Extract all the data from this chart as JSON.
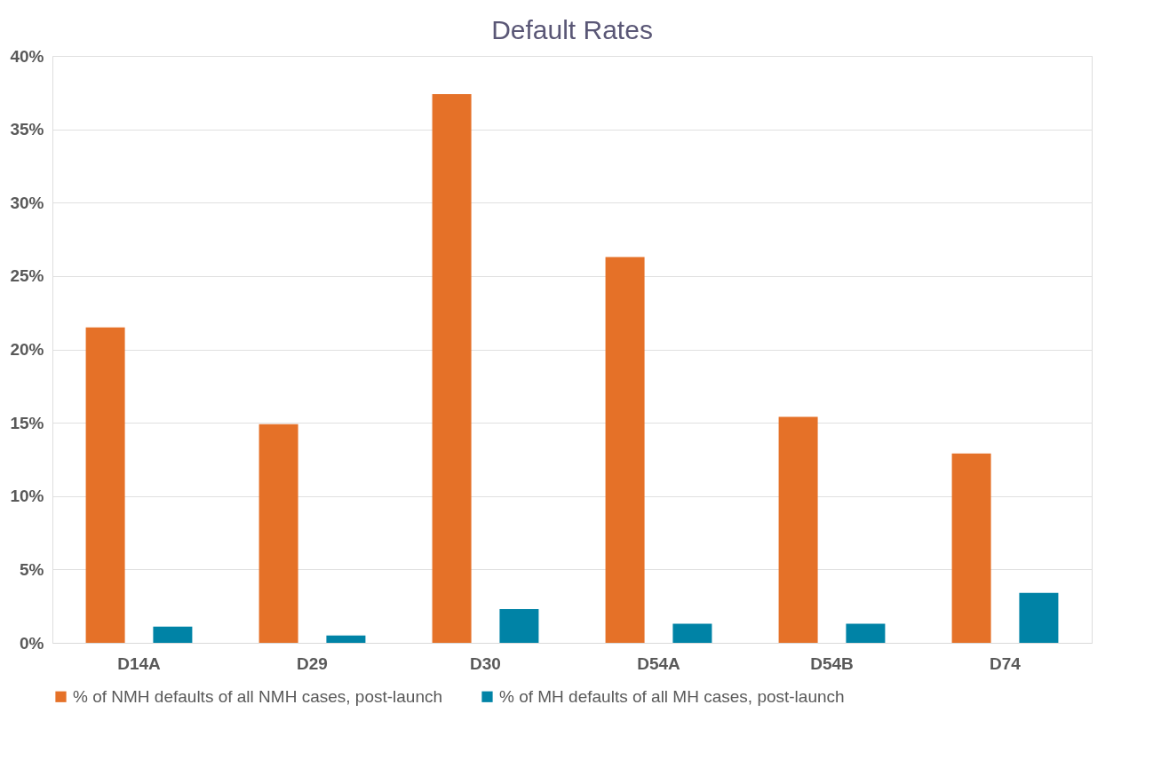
{
  "chart_data": {
    "type": "bar",
    "title": "Default Rates",
    "categories": [
      "D14A",
      "D29",
      "D30",
      "D54A",
      "D54B",
      "D74"
    ],
    "series": [
      {
        "name": "% of NMH defaults of all NMH cases, post-launch",
        "color": "#e57128",
        "values": [
          21.5,
          14.9,
          37.4,
          26.3,
          15.4,
          12.9
        ]
      },
      {
        "name": "% of MH defaults of all MH cases, post-launch",
        "color": "#0083a6",
        "values": [
          1.1,
          0.5,
          2.3,
          1.3,
          1.3,
          3.4
        ]
      }
    ],
    "ylim": [
      0,
      40
    ],
    "yticks": [
      {
        "value": 0,
        "label": "0%"
      },
      {
        "value": 5,
        "label": "5%"
      },
      {
        "value": 10,
        "label": "10%"
      },
      {
        "value": 15,
        "label": "15%"
      },
      {
        "value": 20,
        "label": "20%"
      },
      {
        "value": 25,
        "label": "25%"
      },
      {
        "value": 30,
        "label": "30%"
      },
      {
        "value": 35,
        "label": "35%"
      },
      {
        "value": 40,
        "label": "40%"
      }
    ],
    "grid": "y",
    "legend": "bottom"
  }
}
